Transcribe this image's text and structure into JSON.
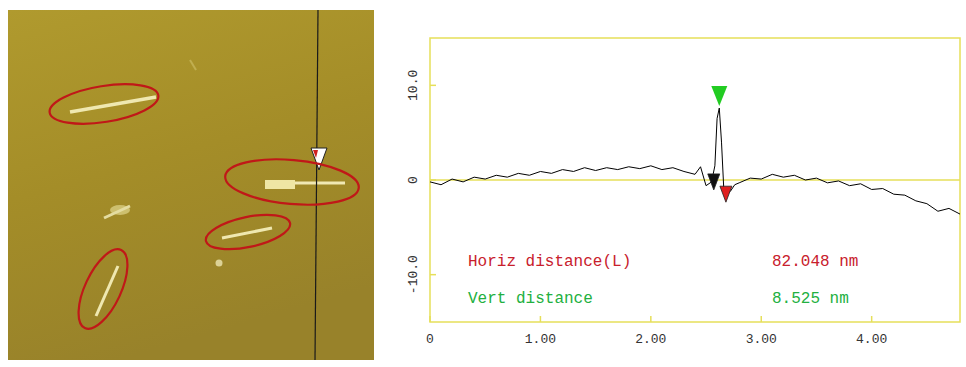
{
  "chart_data": {
    "type": "line",
    "x": [
      0,
      0.1,
      0.2,
      0.3,
      0.4,
      0.5,
      0.6,
      0.7,
      0.8,
      0.9,
      1.0,
      1.1,
      1.2,
      1.3,
      1.4,
      1.5,
      1.6,
      1.7,
      1.8,
      1.9,
      2.0,
      2.1,
      2.2,
      2.3,
      2.4,
      2.45,
      2.5,
      2.55,
      2.58,
      2.6,
      2.62,
      2.64,
      2.66,
      2.68,
      2.72,
      2.76,
      2.8,
      2.9,
      3.0,
      3.1,
      3.2,
      3.3,
      3.4,
      3.5,
      3.6,
      3.7,
      3.8,
      3.9,
      4.0,
      4.1,
      4.2,
      4.3,
      4.4,
      4.5,
      4.6,
      4.7,
      4.8
    ],
    "series": [
      {
        "color": "#000000",
        "values": [
          -0.2,
          -0.5,
          0.1,
          -0.2,
          0.3,
          0.1,
          0.5,
          0.3,
          0.7,
          0.5,
          0.9,
          0.7,
          1.1,
          0.9,
          1.3,
          1.0,
          1.3,
          1.1,
          1.4,
          1.2,
          1.5,
          1.1,
          1.3,
          0.9,
          0.6,
          1.4,
          -0.6,
          -0.2,
          1.5,
          6.5,
          7.6,
          4.0,
          -0.8,
          -1.5,
          -1.2,
          -0.5,
          -0.3,
          0.2,
          0.1,
          0.6,
          0.3,
          0.5,
          0.0,
          0.2,
          -0.3,
          -0.1,
          -0.6,
          -0.4,
          -1.0,
          -0.9,
          -1.5,
          -1.6,
          -2.2,
          -2.5,
          -3.3,
          -3.0,
          -3.6
        ]
      }
    ],
    "xlim": [
      0,
      4.8
    ],
    "ylim": [
      -15,
      15
    ],
    "xticks": [
      0,
      {
        "value": 1,
        "label": "1.00"
      },
      {
        "value": 2,
        "label": "2.00"
      },
      {
        "value": 3,
        "label": "3.00"
      },
      {
        "value": 4,
        "label": "4.00"
      }
    ],
    "yticks": [
      {
        "value": -10,
        "label": "-10.0"
      },
      0,
      {
        "value": 10,
        "label": "10.0"
      }
    ],
    "grid": false,
    "cursors": [
      {
        "x": 2.57,
        "y": -0.2,
        "color": "#111111"
      },
      {
        "x": 2.68,
        "y": -1.5,
        "color": "#e02020"
      },
      {
        "x": 2.62,
        "y": 7.6,
        "color": "#22cc22"
      }
    ],
    "annotations": [
      {
        "label": "Horiz distance(L)",
        "value": "82.048 nm",
        "color": "#c8202c"
      },
      {
        "label": "Vert distance",
        "value": "8.525 nm",
        "color": "#22b040"
      }
    ]
  }
}
